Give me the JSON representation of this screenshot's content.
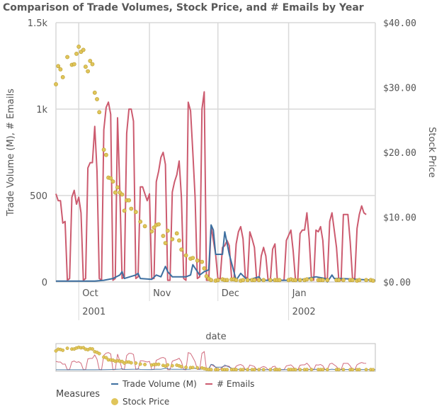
{
  "title": "Comparison of Trade Volumes, Stock Price, and # Emails by Year",
  "colors": {
    "trade_volume": "#3d6fa0",
    "emails": "#cc5b6f",
    "stock_price": "#e0c55a",
    "grid": "#d9d9d9"
  },
  "chart_data": {
    "type": "line",
    "title": "Comparison of Trade Volumes, Stock Price, and # Emails by Year",
    "xlabel": "date",
    "ylabel_left": "Trade Volume (M), # Emails",
    "ylabel_right": "Stock Price",
    "x_ticks": [
      "Oct",
      "Nov",
      "Dec",
      "Jan"
    ],
    "x_years": [
      "2001",
      "2002"
    ],
    "y_left_ticks": [
      "0",
      "500",
      "1k",
      "1.5k"
    ],
    "y_left_range": [
      0,
      1500
    ],
    "y_right_ticks": [
      "$0.00",
      "$10.00",
      "$20.00",
      "$30.00",
      "$40.00"
    ],
    "y_right_range": [
      0,
      40
    ],
    "grid": true,
    "legend_title": "Measures",
    "legend_position": "bottom",
    "x_range": [
      "2001-09-21",
      "2002-02-08"
    ],
    "series": [
      {
        "name": "Trade Volume (M)",
        "axis": "left",
        "kind": "line",
        "points": [
          [
            "2001-09-21",
            5
          ],
          [
            "2001-10-08",
            5
          ],
          [
            "2001-10-12",
            10
          ],
          [
            "2001-10-16",
            20
          ],
          [
            "2001-10-19",
            40
          ],
          [
            "2001-10-20",
            60
          ],
          [
            "2001-10-21",
            20
          ],
          [
            "2001-10-26",
            40
          ],
          [
            "2001-10-27",
            50
          ],
          [
            "2001-10-28",
            20
          ],
          [
            "2001-11-02",
            15
          ],
          [
            "2001-11-04",
            40
          ],
          [
            "2001-11-06",
            30
          ],
          [
            "2001-11-08",
            90
          ],
          [
            "2001-11-09",
            60
          ],
          [
            "2001-11-11",
            30
          ],
          [
            "2001-11-17",
            30
          ],
          [
            "2001-11-19",
            40
          ],
          [
            "2001-11-20",
            100
          ],
          [
            "2001-11-21",
            80
          ],
          [
            "2001-11-23",
            40
          ],
          [
            "2001-11-25",
            60
          ],
          [
            "2001-11-27",
            70
          ],
          [
            "2001-11-28",
            330
          ],
          [
            "2001-11-29",
            300
          ],
          [
            "2001-11-30",
            160
          ],
          [
            "2001-12-03",
            160
          ],
          [
            "2001-12-04",
            290
          ],
          [
            "2001-12-06",
            160
          ],
          [
            "2001-12-09",
            10
          ],
          [
            "2001-12-11",
            50
          ],
          [
            "2001-12-14",
            10
          ],
          [
            "2001-12-19",
            30
          ],
          [
            "2001-12-20",
            10
          ],
          [
            "2002-01-05",
            10
          ],
          [
            "2002-01-13",
            30
          ],
          [
            "2002-01-17",
            20
          ],
          [
            "2002-01-18",
            0
          ],
          [
            "2002-01-20",
            40
          ],
          [
            "2002-01-21",
            20
          ],
          [
            "2002-01-24",
            20
          ],
          [
            "2002-02-08",
            10
          ]
        ]
      },
      {
        "name": "# Emails",
        "axis": "left",
        "kind": "line",
        "points": [
          [
            "2001-09-21",
            510
          ],
          [
            "2001-09-22",
            470
          ],
          [
            "2001-09-23",
            470
          ],
          [
            "2001-09-24",
            340
          ],
          [
            "2001-09-25",
            350
          ],
          [
            "2001-09-26",
            10
          ],
          [
            "2001-09-27",
            20
          ],
          [
            "2001-09-28",
            490
          ],
          [
            "2001-09-29",
            530
          ],
          [
            "2001-09-30",
            450
          ],
          [
            "2001-10-01",
            490
          ],
          [
            "2001-10-02",
            400
          ],
          [
            "2001-10-03",
            10
          ],
          [
            "2001-10-04",
            20
          ],
          [
            "2001-10-05",
            660
          ],
          [
            "2001-10-06",
            690
          ],
          [
            "2001-10-07",
            690
          ],
          [
            "2001-10-08",
            900
          ],
          [
            "2001-10-09",
            640
          ],
          [
            "2001-10-10",
            20
          ],
          [
            "2001-10-11",
            10
          ],
          [
            "2001-10-12",
            880
          ],
          [
            "2001-10-13",
            1010
          ],
          [
            "2001-10-14",
            1040
          ],
          [
            "2001-10-15",
            970
          ],
          [
            "2001-10-16",
            10
          ],
          [
            "2001-10-17",
            20
          ],
          [
            "2001-10-18",
            950
          ],
          [
            "2001-10-19",
            530
          ],
          [
            "2001-10-20",
            20
          ],
          [
            "2001-10-21",
            30
          ],
          [
            "2001-10-22",
            860
          ],
          [
            "2001-10-23",
            1000
          ],
          [
            "2001-10-24",
            1000
          ],
          [
            "2001-10-25",
            930
          ],
          [
            "2001-10-26",
            20
          ],
          [
            "2001-10-27",
            30
          ],
          [
            "2001-10-28",
            550
          ],
          [
            "2001-10-29",
            550
          ],
          [
            "2001-10-30",
            510
          ],
          [
            "2001-10-31",
            470
          ],
          [
            "2001-11-01",
            510
          ],
          [
            "2001-11-02",
            20
          ],
          [
            "2001-11-03",
            20
          ],
          [
            "2001-11-04",
            580
          ],
          [
            "2001-11-05",
            640
          ],
          [
            "2001-11-06",
            720
          ],
          [
            "2001-11-07",
            750
          ],
          [
            "2001-11-08",
            680
          ],
          [
            "2001-11-09",
            10
          ],
          [
            "2001-11-10",
            10
          ],
          [
            "2001-11-11",
            520
          ],
          [
            "2001-11-12",
            580
          ],
          [
            "2001-11-13",
            620
          ],
          [
            "2001-11-14",
            700
          ],
          [
            "2001-11-15",
            490
          ],
          [
            "2001-11-16",
            20
          ],
          [
            "2001-11-17",
            10
          ],
          [
            "2001-11-18",
            1040
          ],
          [
            "2001-11-19",
            990
          ],
          [
            "2001-11-20",
            750
          ],
          [
            "2001-11-21",
            490
          ],
          [
            "2001-11-22",
            20
          ],
          [
            "2001-11-23",
            30
          ],
          [
            "2001-11-24",
            1000
          ],
          [
            "2001-11-25",
            1100
          ],
          [
            "2001-11-26",
            10
          ],
          [
            "2001-11-27",
            10
          ],
          [
            "2001-11-28",
            320
          ],
          [
            "2001-11-29",
            240
          ],
          [
            "2001-11-30",
            160
          ],
          [
            "2001-12-01",
            20
          ],
          [
            "2001-12-02",
            20
          ],
          [
            "2001-12-03",
            200
          ],
          [
            "2001-12-04",
            210
          ],
          [
            "2001-12-05",
            240
          ],
          [
            "2001-12-06",
            210
          ],
          [
            "2001-12-07",
            20
          ],
          [
            "2001-12-08",
            10
          ],
          [
            "2001-12-09",
            220
          ],
          [
            "2001-12-10",
            290
          ],
          [
            "2001-12-11",
            320
          ],
          [
            "2001-12-12",
            250
          ],
          [
            "2001-12-13",
            30
          ],
          [
            "2001-12-14",
            20
          ],
          [
            "2001-12-15",
            290
          ],
          [
            "2001-12-16",
            250
          ],
          [
            "2001-12-17",
            200
          ],
          [
            "2001-12-18",
            10
          ],
          [
            "2001-12-19",
            10
          ],
          [
            "2001-12-20",
            150
          ],
          [
            "2001-12-21",
            200
          ],
          [
            "2001-12-22",
            150
          ],
          [
            "2001-12-23",
            10
          ],
          [
            "2001-12-24",
            10
          ],
          [
            "2001-12-25",
            190
          ],
          [
            "2001-12-26",
            220
          ],
          [
            "2001-12-27",
            20
          ],
          [
            "2001-12-28",
            10
          ],
          [
            "2001-12-29",
            10
          ],
          [
            "2001-12-30",
            10
          ],
          [
            "2001-12-31",
            240
          ],
          [
            "2002-01-01",
            270
          ],
          [
            "2002-01-02",
            300
          ],
          [
            "2002-01-03",
            180
          ],
          [
            "2002-01-04",
            10
          ],
          [
            "2002-01-05",
            10
          ],
          [
            "2002-01-06",
            280
          ],
          [
            "2002-01-07",
            300
          ],
          [
            "2002-01-08",
            300
          ],
          [
            "2002-01-09",
            400
          ],
          [
            "2002-01-10",
            250
          ],
          [
            "2002-01-11",
            20
          ],
          [
            "2002-01-12",
            10
          ],
          [
            "2002-01-13",
            300
          ],
          [
            "2002-01-14",
            290
          ],
          [
            "2002-01-15",
            320
          ],
          [
            "2002-01-16",
            240
          ],
          [
            "2002-01-17",
            20
          ],
          [
            "2002-01-18",
            20
          ],
          [
            "2002-01-19",
            350
          ],
          [
            "2002-01-20",
            400
          ],
          [
            "2002-01-21",
            300
          ],
          [
            "2002-01-22",
            200
          ],
          [
            "2002-01-23",
            10
          ],
          [
            "2002-01-24",
            10
          ],
          [
            "2002-01-25",
            390
          ],
          [
            "2002-01-26",
            390
          ],
          [
            "2002-01-27",
            390
          ],
          [
            "2002-01-28",
            230
          ],
          [
            "2002-01-29",
            20
          ],
          [
            "2002-01-30",
            20
          ],
          [
            "2002-01-31",
            310
          ],
          [
            "2002-02-01",
            390
          ],
          [
            "2002-02-02",
            440
          ],
          [
            "2002-02-03",
            400
          ],
          [
            "2002-02-04",
            390
          ]
        ]
      },
      {
        "name": "Stock Price",
        "axis": "right",
        "kind": "scatter",
        "points": [
          [
            "2001-09-21",
            30.5
          ],
          [
            "2001-09-22",
            33.3
          ],
          [
            "2001-09-23",
            32.8
          ],
          [
            "2001-09-24",
            31.6
          ],
          [
            "2001-09-26",
            34.7
          ],
          [
            "2001-09-28",
            33.5
          ],
          [
            "2001-09-29",
            33.6
          ],
          [
            "2001-09-30",
            35.2
          ],
          [
            "2001-10-01",
            36.3
          ],
          [
            "2001-10-02",
            35.5
          ],
          [
            "2001-10-03",
            35.8
          ],
          [
            "2001-10-04",
            33.2
          ],
          [
            "2001-10-05",
            32.5
          ],
          [
            "2001-10-06",
            34.1
          ],
          [
            "2001-10-07",
            33.6
          ],
          [
            "2001-10-08",
            29.2
          ],
          [
            "2001-10-09",
            28.2
          ],
          [
            "2001-10-10",
            26.2
          ],
          [
            "2001-10-12",
            20.4
          ],
          [
            "2001-10-13",
            19.6
          ],
          [
            "2001-10-14",
            16.1
          ],
          [
            "2001-10-15",
            16.0
          ],
          [
            "2001-10-16",
            15.5
          ],
          [
            "2001-10-17",
            13.8
          ],
          [
            "2001-10-18",
            14.6
          ],
          [
            "2001-10-19",
            13.8
          ],
          [
            "2001-10-20",
            13.5
          ],
          [
            "2001-10-21",
            11.0
          ],
          [
            "2001-10-22",
            12.6
          ],
          [
            "2001-10-23",
            12.6
          ],
          [
            "2001-10-24",
            11.3
          ],
          [
            "2001-10-26",
            10.8
          ],
          [
            "2001-10-28",
            9.3
          ],
          [
            "2001-10-30",
            8.6
          ],
          [
            "2001-11-02",
            7.8
          ],
          [
            "2001-11-03",
            8.4
          ],
          [
            "2001-11-04",
            8.8
          ],
          [
            "2001-11-05",
            8.9
          ],
          [
            "2001-11-07",
            7.1
          ],
          [
            "2001-11-08",
            6.0
          ],
          [
            "2001-11-09",
            7.9
          ],
          [
            "2001-11-11",
            6.6
          ],
          [
            "2001-11-13",
            7.5
          ],
          [
            "2001-11-14",
            6.4
          ],
          [
            "2001-11-15",
            5.0
          ],
          [
            "2001-11-17",
            4.1
          ],
          [
            "2001-11-19",
            3.6
          ],
          [
            "2001-11-20",
            3.7
          ],
          [
            "2001-11-22",
            3.3
          ],
          [
            "2001-11-24",
            3.1
          ],
          [
            "2001-11-25",
            2.1
          ],
          [
            "2001-11-26",
            0.9
          ],
          [
            "2001-11-27",
            0.5
          ],
          [
            "2001-11-28",
            0.3
          ],
          [
            "2001-11-30",
            0.2
          ],
          [
            "2001-12-01",
            0.3
          ],
          [
            "2001-12-03",
            0.4
          ],
          [
            "2001-12-04",
            0.3
          ],
          [
            "2001-12-05",
            0.3
          ],
          [
            "2001-12-07",
            0.4
          ],
          [
            "2001-12-08",
            0.4
          ],
          [
            "2001-12-09",
            0.3
          ],
          [
            "2001-12-11",
            0.2
          ],
          [
            "2001-12-12",
            0.3
          ],
          [
            "2001-12-14",
            0.3
          ],
          [
            "2001-12-16",
            0.3
          ],
          [
            "2001-12-17",
            0.3
          ],
          [
            "2001-12-19",
            0.3
          ],
          [
            "2001-12-21",
            0.3
          ],
          [
            "2001-12-24",
            0.3
          ],
          [
            "2001-12-26",
            0.3
          ],
          [
            "2001-12-27",
            0.3
          ],
          [
            "2001-12-28",
            0.3
          ],
          [
            "2002-01-01",
            0.3
          ],
          [
            "2002-01-02",
            0.4
          ],
          [
            "2002-01-03",
            0.3
          ],
          [
            "2002-01-04",
            0.3
          ],
          [
            "2002-01-06",
            0.3
          ],
          [
            "2002-01-08",
            0.3
          ],
          [
            "2002-01-09",
            0.4
          ],
          [
            "2002-01-11",
            0.4
          ],
          [
            "2002-01-14",
            0.3
          ],
          [
            "2002-01-15",
            0.3
          ],
          [
            "2002-01-16",
            0.3
          ],
          [
            "2002-01-18",
            0.3
          ],
          [
            "2002-01-22",
            0.3
          ],
          [
            "2002-01-23",
            0.3
          ],
          [
            "2002-01-25",
            0.3
          ],
          [
            "2002-01-28",
            0.3
          ],
          [
            "2002-01-29",
            0.3
          ],
          [
            "2002-01-31",
            0.2
          ],
          [
            "2002-02-01",
            0.3
          ],
          [
            "2002-02-04",
            0.3
          ],
          [
            "2002-02-06",
            0.3
          ],
          [
            "2002-02-07",
            0.2
          ]
        ]
      }
    ]
  }
}
